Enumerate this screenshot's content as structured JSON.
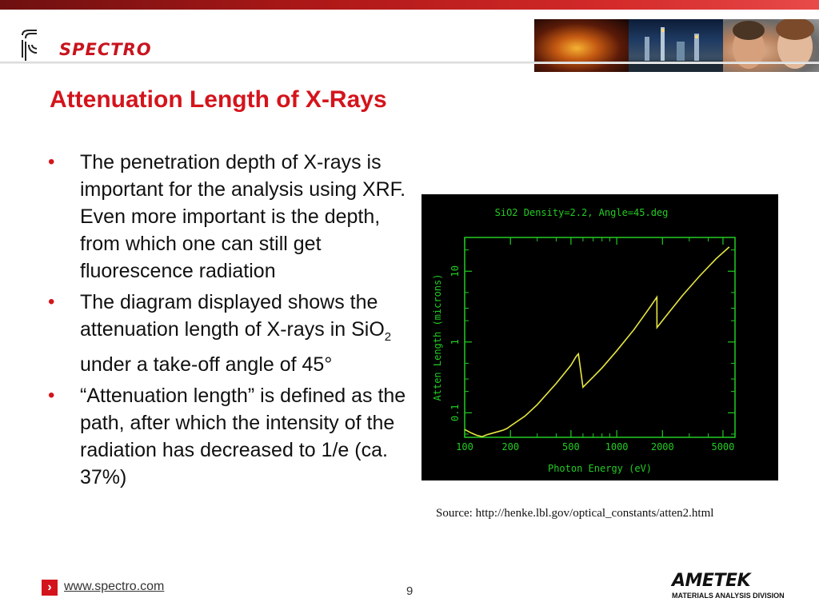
{
  "header": {
    "brand_logo_text": "SPECTRO",
    "photos": [
      "industrial-furnace-photo",
      "refinery-night-photo",
      "people-portrait-photo"
    ]
  },
  "slide": {
    "title": "Attenuation Length of X-Rays",
    "bullets": [
      {
        "text": "The penetration depth of X-rays is important for the analysis using XRF. Even more important is the depth, from which one can still get fluorescence radiation"
      },
      {
        "pre": "The diagram displayed shows the attenuation length of X-rays in SiO",
        "sub": "2",
        "post": " under a take-off angle of 45°"
      },
      {
        "text": "“Attenuation length” is defined as the path, after which the intensity of the radiation has decreased to  1/e (ca. 37%)"
      }
    ],
    "source": "Source: http://henke.lbl.gov/optical_constants/atten2.html"
  },
  "footer": {
    "link_text": "www.spectro.com",
    "page_number": "9",
    "company_logo_text": "AMETEK",
    "company_division": "MATERIALS ANALYSIS DIVISION"
  },
  "colors": {
    "accent": "#d4141c",
    "plot_frame": "#22cc22",
    "plot_line": "#e8e840",
    "plot_bg": "#000000"
  },
  "chart_data": {
    "type": "line",
    "title": "SiO2 Density=2.2, Angle=45.deg",
    "xlabel": "Photon Energy (eV)",
    "ylabel": "Atten Length (microns)",
    "x_scale": "log",
    "y_scale": "log",
    "xlim": [
      100,
      6000
    ],
    "ylim": [
      0.045,
      30
    ],
    "xticks": [
      100,
      200,
      500,
      1000,
      2000,
      5000
    ],
    "xtick_labels": [
      "100",
      "200",
      "500",
      "1000",
      "2000",
      "5000"
    ],
    "yticks": [
      0.1,
      1,
      10
    ],
    "ytick_labels": [
      "0.1",
      "1",
      "10"
    ],
    "grid": false,
    "series": [
      {
        "x": [
          100,
          110,
          120,
          130,
          140,
          150,
          160,
          170,
          180,
          190,
          200,
          250,
          300,
          400,
          500,
          540,
          560,
          600,
          700,
          800,
          1000,
          1300,
          1600,
          1838,
          1840,
          1900,
          2200,
          2700,
          3500,
          4500,
          5500
        ],
        "y": [
          0.058,
          0.052,
          0.048,
          0.046,
          0.049,
          0.051,
          0.053,
          0.055,
          0.057,
          0.06,
          0.065,
          0.09,
          0.13,
          0.26,
          0.47,
          0.62,
          0.68,
          0.23,
          0.32,
          0.43,
          0.75,
          1.5,
          2.8,
          4.3,
          1.6,
          1.75,
          2.6,
          4.5,
          8.5,
          15,
          22
        ]
      }
    ]
  }
}
